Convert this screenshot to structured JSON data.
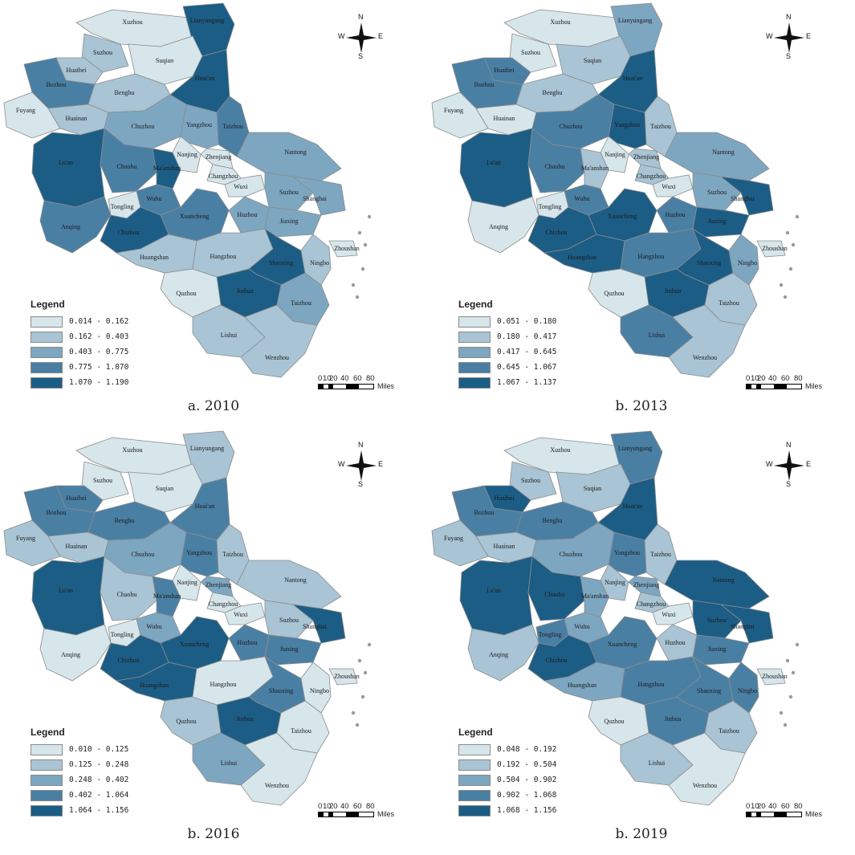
{
  "map_common": {
    "legend_title": "Legend",
    "scale_ticks": [
      "0",
      "10",
      "20",
      "40",
      "60",
      "80"
    ],
    "scale_unit": "Miles",
    "north": {
      "n": "N",
      "s": "S",
      "w": "W",
      "e": "E"
    },
    "sea_color": "#ffffff",
    "border_color": "#8c8c8c"
  },
  "palette": [
    "#d6e6ea",
    "#a9c4d4",
    "#7da6c1",
    "#4a7fa4",
    "#1c5d86"
  ],
  "regions": [
    "Xuzhou",
    "Lianyungang",
    "Suzhou",
    "Suqian",
    "Huaibei",
    "Bozhou",
    "Huai'an",
    "Bengbu",
    "Fuyang",
    "Huainan",
    "Taizhou",
    "Chuzhou",
    "Yangzhou",
    "Nanjing",
    "Zhenjiang",
    "Nantong",
    "Lu'an",
    "Chaohu",
    "Ma'anshan",
    "Changzhou",
    "Wuxi",
    "Suzhou",
    "Wuhu",
    "Shanghai",
    "Tongling",
    "Xuancheng",
    "Huzhou",
    "Jiaxing",
    "Anqing",
    "Chizhou",
    "Zhoushan",
    "Huangshan",
    "Hangzhou",
    "Shaoxing",
    "Ningbo",
    "Jinhua",
    "Quzhou",
    "Taizhou",
    "Lishui",
    "Wenzhou"
  ],
  "panels": [
    {
      "caption": "a. 2010",
      "legend": [
        "0.014 - 0.162",
        "0.162 - 0.403",
        "0.403 - 0.775",
        "0.775 - 1.070",
        "1.070 - 1.190"
      ],
      "classes": [
        0,
        4,
        1,
        0,
        1,
        3,
        4,
        1,
        0,
        1,
        3,
        2,
        2,
        0,
        0,
        2,
        4,
        3,
        4,
        0,
        0,
        2,
        3,
        2,
        0,
        3,
        2,
        2,
        3,
        4,
        0,
        1,
        1,
        4,
        1,
        4,
        0,
        2,
        1,
        1
      ]
    },
    {
      "caption": "b. 2013",
      "legend": [
        "0.051 - 0.180",
        "0.180 - 0.417",
        "0.417 - 0.645",
        "0.645 - 1.067",
        "1.067 - 1.137"
      ],
      "classes": [
        0,
        2,
        0,
        1,
        3,
        3,
        4,
        1,
        0,
        0,
        1,
        3,
        4,
        0,
        1,
        2,
        4,
        3,
        1,
        1,
        0,
        2,
        3,
        4,
        0,
        4,
        3,
        4,
        0,
        4,
        0,
        4,
        3,
        4,
        2,
        4,
        0,
        1,
        3,
        1
      ]
    },
    {
      "caption": "b. 2016",
      "legend": [
        "0.010 - 0.125",
        "0.125 - 0.248",
        "0.248 - 0.402",
        "0.402 - 1.064",
        "1.064 - 1.156"
      ],
      "classes": [
        0,
        1,
        0,
        0,
        3,
        3,
        3,
        3,
        1,
        1,
        1,
        2,
        3,
        0,
        2,
        1,
        4,
        1,
        3,
        0,
        0,
        1,
        2,
        4,
        0,
        4,
        3,
        3,
        0,
        4,
        0,
        4,
        0,
        3,
        0,
        4,
        1,
        0,
        2,
        0
      ]
    },
    {
      "caption": "b. 2019",
      "legend": [
        "0.048 - 0.192",
        "0.192 - 0.504",
        "0.504 - 0.902",
        "0.902 - 1.068",
        "1.068 - 1.156"
      ],
      "classes": [
        0,
        3,
        1,
        1,
        4,
        3,
        4,
        3,
        1,
        1,
        1,
        2,
        3,
        1,
        2,
        4,
        4,
        4,
        2,
        1,
        0,
        4,
        2,
        4,
        3,
        3,
        1,
        3,
        1,
        4,
        0,
        2,
        3,
        3,
        3,
        3,
        0,
        1,
        1,
        0
      ]
    }
  ]
}
